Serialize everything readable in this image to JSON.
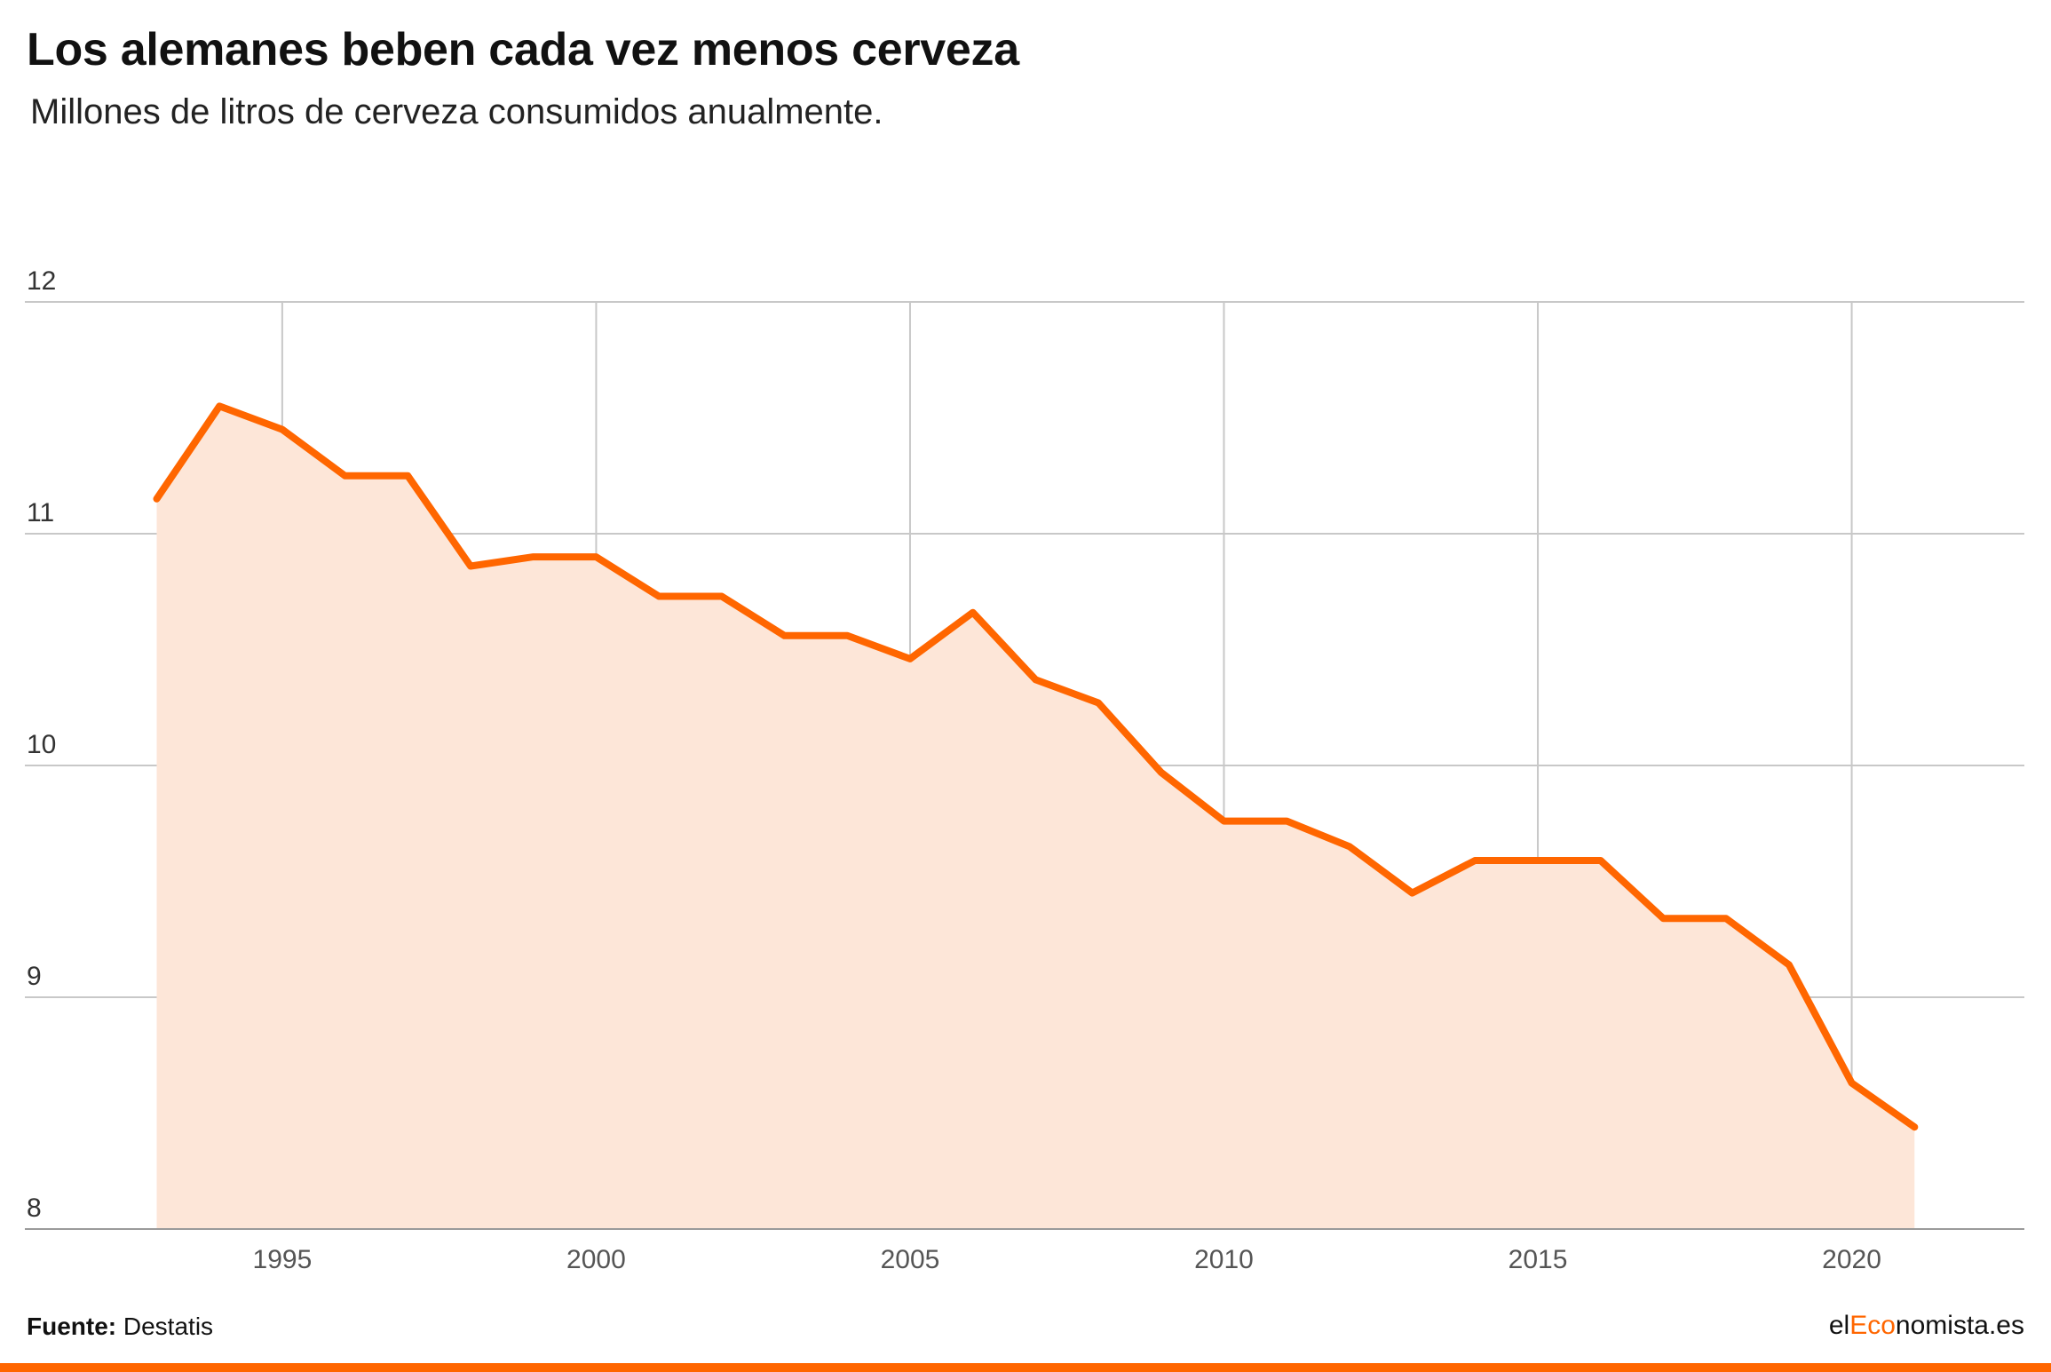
{
  "header": {
    "title": "Los alemanes beben cada vez menos cerveza",
    "subtitle": "Millones de litros de cerveza consumidos anualmente."
  },
  "footer": {
    "source_label": "Fuente:",
    "source_value": "Destatis",
    "brand_prefix": "el",
    "brand_accent": "Eco",
    "brand_suffix": "nomista.es"
  },
  "colors": {
    "line": "#ff6600",
    "area": "#fde6d8",
    "grid": "#c8c8c8",
    "accent": "#ff6600"
  },
  "chart_data": {
    "type": "area",
    "title": "Los alemanes beben cada vez menos cerveza",
    "subtitle": "Millones de litros de cerveza consumidos anualmente.",
    "xlabel": "",
    "ylabel": "",
    "x": [
      1993,
      1994,
      1995,
      1996,
      1997,
      1998,
      1999,
      2000,
      2001,
      2002,
      2003,
      2004,
      2005,
      2006,
      2007,
      2008,
      2009,
      2010,
      2011,
      2012,
      2013,
      2014,
      2015,
      2016,
      2017,
      2018,
      2019,
      2020,
      2021
    ],
    "series": [
      {
        "values": [
          11.15,
          11.55,
          11.45,
          11.25,
          11.25,
          10.86,
          10.9,
          10.9,
          10.73,
          10.73,
          10.56,
          10.56,
          10.46,
          10.66,
          10.37,
          10.27,
          9.97,
          9.76,
          9.76,
          9.65,
          9.45,
          9.59,
          9.59,
          9.59,
          9.34,
          9.34,
          9.14,
          8.63,
          8.44
        ]
      }
    ],
    "xlim": [
      1990.9,
      2022.75
    ],
    "ylim": [
      8,
      12
    ],
    "x_ticks": [
      1995,
      2000,
      2005,
      2010,
      2015,
      2020
    ],
    "y_ticks": [
      8,
      9,
      10,
      11,
      12
    ],
    "grid": true,
    "legend": "none"
  }
}
